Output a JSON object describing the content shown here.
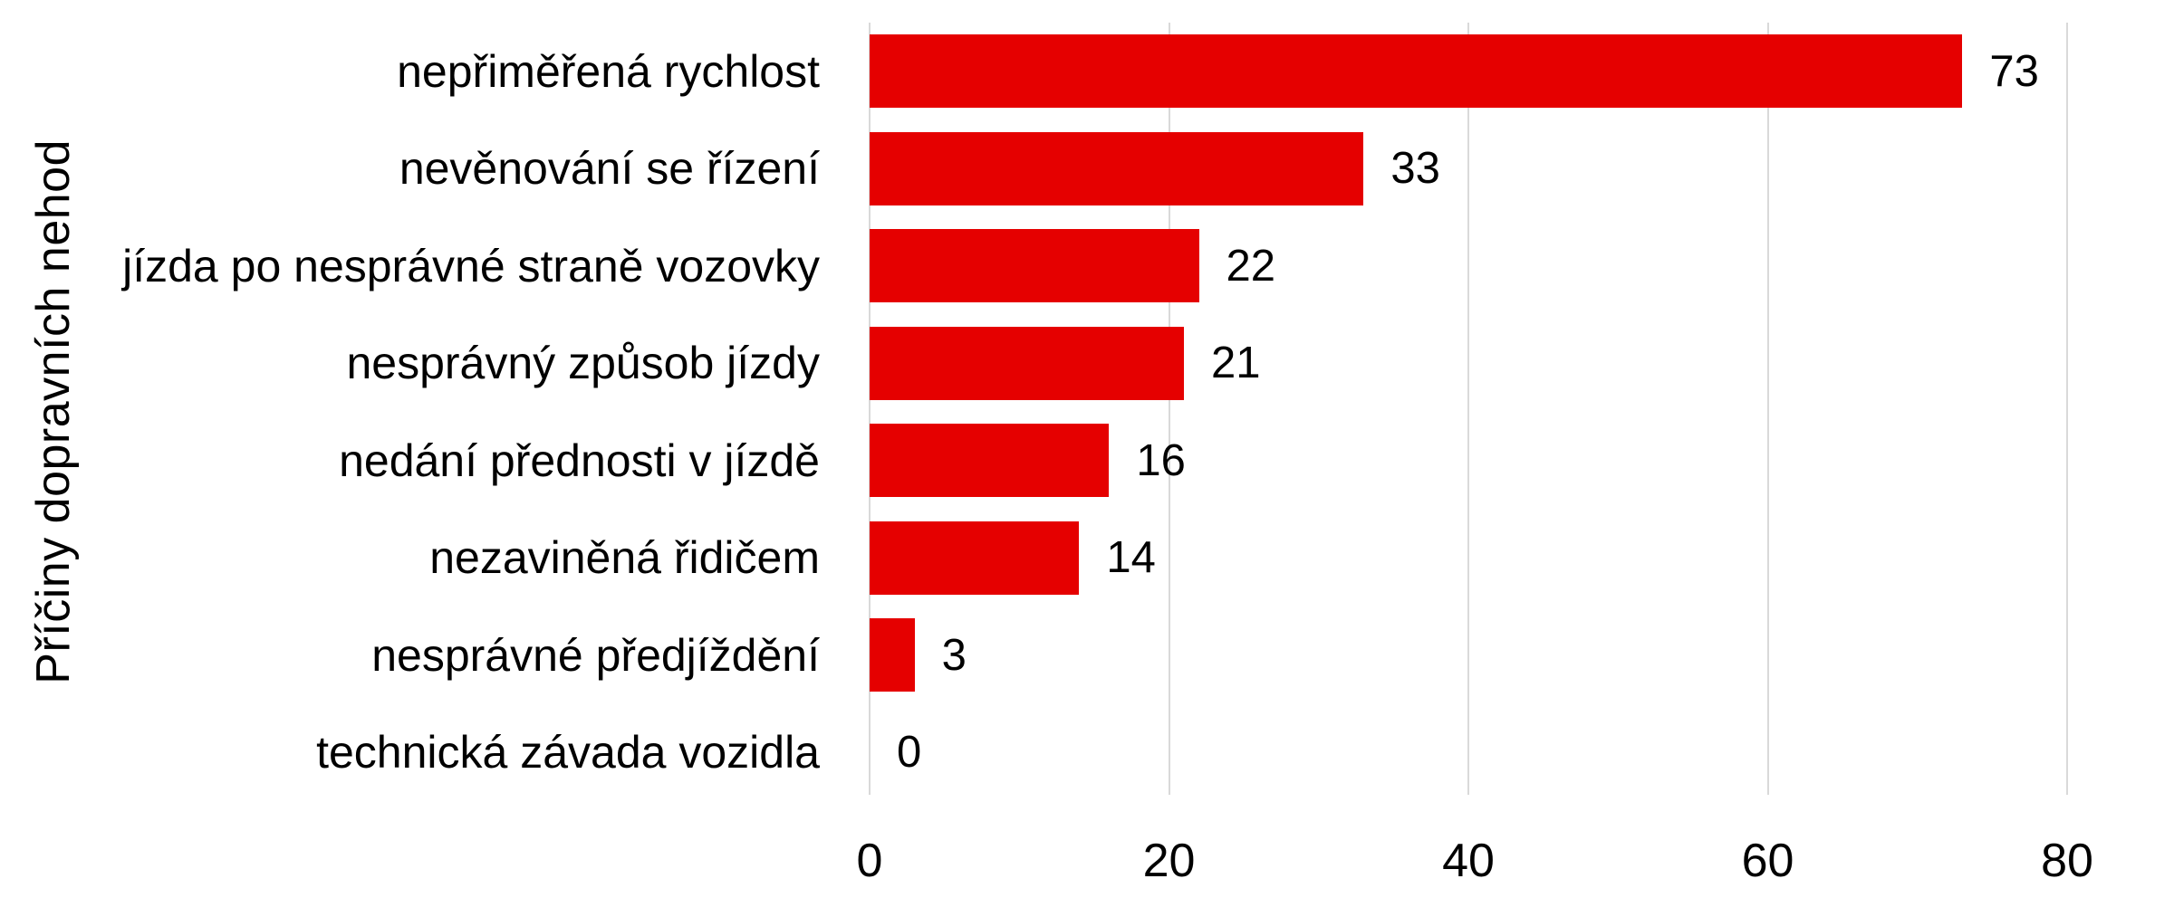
{
  "chart_data": {
    "type": "bar",
    "orientation": "horizontal",
    "title": "",
    "ylabel": "Příčiny dopravních nehod",
    "xlabel": "",
    "categories": [
      "nepřiměřená rychlost",
      "nevěnování se řízení",
      "jízda po nesprávné straně vozovky",
      "nesprávný způsob jízdy",
      "nedání přednosti v jízdě",
      "nezaviněná řidičem",
      "nesprávné předjíždění",
      "technická závada vozidla"
    ],
    "values": [
      73,
      33,
      22,
      21,
      16,
      14,
      3,
      0
    ],
    "xlim": [
      0,
      80
    ],
    "xticks": [
      "0",
      "20",
      "40",
      "60",
      "80"
    ],
    "grid": true,
    "legend": false,
    "bar_color": "#e50000",
    "gridline_color": "#d9d9d9",
    "text_color": "#000000",
    "background_color": "#ffffff"
  }
}
